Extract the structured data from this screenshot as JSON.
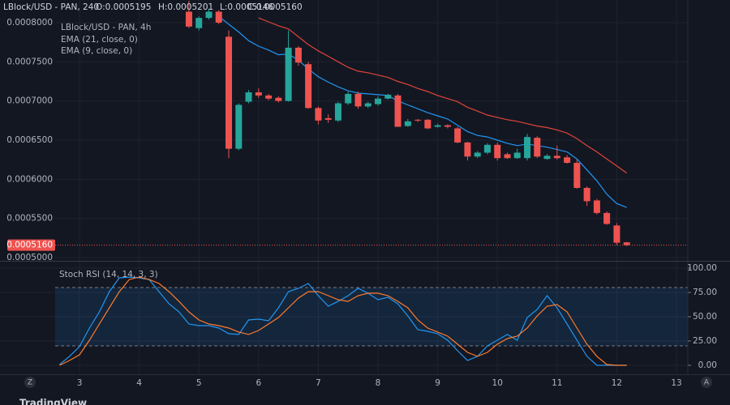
{
  "ui": {
    "symbol": "LBlock/USD - PAN, 240",
    "ohlc": [
      "O:0.0005195",
      "H:0.0005201",
      "L:0.0005146",
      "C:0.0005160"
    ],
    "left_button": "Z",
    "right_button": "A",
    "brand": "TradingView"
  },
  "chart_data": [
    {
      "type": "candlestick",
      "title": "LBlock/USD - PAN, 4h",
      "up_color": "#26a69a",
      "down_color": "#ef5350",
      "x": [
        4.833,
        5,
        5.167,
        5.333,
        5.5,
        5.667,
        5.833,
        6,
        6.167,
        6.333,
        6.5,
        6.667,
        6.833,
        7,
        7.167,
        7.333,
        7.5,
        7.667,
        7.833,
        8,
        8.167,
        8.333,
        8.5,
        8.667,
        8.833,
        9,
        9.167,
        9.333,
        9.5,
        9.667,
        9.833,
        10,
        10.167,
        10.333,
        10.5,
        10.667,
        10.833,
        11,
        11.167,
        11.333,
        11.5,
        11.667,
        11.833,
        12,
        12.167
      ],
      "open": [
        0.000814,
        0.000793,
        0.000806,
        0.000814,
        0.000782,
        0.000639,
        0.000699,
        0.000711,
        0.000707,
        0.000704,
        0.0007,
        0.000768,
        0.000747,
        0.000691,
        0.000678,
        0.000675,
        0.000697,
        0.000709,
        0.000693,
        0.000696,
        0.000703,
        0.000707,
        0.000668,
        0.000676,
        0.000676,
        0.000667,
        0.000669,
        0.000665,
        0.000647,
        0.000629,
        0.000634,
        0.000644,
        0.000632,
        0.000627,
        0.000627,
        0.000653,
        0.000626,
        0.00063,
        0.000628,
        0.000621,
        0.000589,
        0.000573,
        0.000557,
        0.000541,
        0.0005195
      ],
      "high": [
        0.000828,
        0.000808,
        0.000818,
        0.000816,
        0.00079,
        0.000697,
        0.000714,
        0.000716,
        0.000709,
        0.000706,
        0.00079,
        0.00077,
        0.00075,
        0.000693,
        0.000683,
        0.000699,
        0.000712,
        0.000712,
        0.000699,
        0.000706,
        0.000709,
        0.000709,
        0.000677,
        0.000677,
        0.000677,
        0.000671,
        0.00067,
        0.000667,
        0.000648,
        0.000636,
        0.000646,
        0.000647,
        0.000634,
        0.000639,
        0.000658,
        0.000655,
        0.000632,
        0.000643,
        0.000631,
        0.000625,
        0.000591,
        0.000575,
        0.000559,
        0.000544,
        0.0005201
      ],
      "low": [
        0.000793,
        0.00079,
        0.000804,
        0.000798,
        0.000627,
        0.000637,
        0.000697,
        0.000704,
        0.000701,
        0.000698,
        0.000699,
        0.000745,
        0.00069,
        0.00067,
        0.000672,
        0.000673,
        0.000695,
        0.00069,
        0.000691,
        0.000694,
        0.000702,
        0.000667,
        0.000667,
        0.000673,
        0.000664,
        0.000666,
        0.000665,
        0.000646,
        0.000624,
        0.000627,
        0.000632,
        0.000624,
        0.000626,
        0.000626,
        0.000624,
        0.000627,
        0.000625,
        0.000625,
        0.00062,
        0.000588,
        0.000566,
        0.000555,
        0.000542,
        0.000516,
        0.0005146
      ],
      "close": [
        0.000795,
        0.000806,
        0.000814,
        0.0008,
        0.000639,
        0.000695,
        0.000711,
        0.000707,
        0.000703,
        0.0007,
        0.000768,
        0.000749,
        0.000691,
        0.000675,
        0.000676,
        0.000697,
        0.000709,
        0.000693,
        0.000697,
        0.000703,
        0.000708,
        0.000667,
        0.000674,
        0.000675,
        0.000665,
        0.000669,
        0.000667,
        0.000647,
        0.000629,
        0.000634,
        0.000644,
        0.000627,
        0.000627,
        0.000634,
        0.000654,
        0.000629,
        0.00063,
        0.000627,
        0.000621,
        0.000589,
        0.000572,
        0.000557,
        0.000543,
        0.000519,
        0.000516
      ],
      "series": [
        {
          "name": "EMA (21, close, 0)",
          "color": "#e0443a",
          "values": [
            null,
            null,
            null,
            null,
            null,
            null,
            null,
            0.000806,
            0.000801,
            0.000796,
            0.000792,
            0.000782,
            0.000772,
            0.000764,
            0.000757,
            0.00075,
            0.000743,
            0.000738,
            0.000736,
            0.000733,
            0.00073,
            0.000725,
            0.000721,
            0.000716,
            0.000712,
            0.000707,
            0.000703,
            0.000699,
            0.000692,
            0.000687,
            0.000682,
            0.000679,
            0.000676,
            0.000674,
            0.000671,
            0.000668,
            0.000666,
            0.000663,
            0.000659,
            0.000652,
            0.000643,
            0.000635,
            0.000626,
            0.000617,
            0.000608
          ]
        },
        {
          "name": "EMA (9, close, 0)",
          "color": "#2196f3",
          "values": [
            null,
            null,
            null,
            0.000808,
            0.000798,
            0.000788,
            0.000777,
            0.00077,
            0.000765,
            0.000759,
            0.00076,
            0.000752,
            0.000741,
            0.000731,
            0.000724,
            0.000718,
            0.000713,
            0.00071,
            0.000709,
            0.000708,
            0.000707,
            0.0007,
            0.000695,
            0.00069,
            0.000685,
            0.000681,
            0.000677,
            0.000669,
            0.000661,
            0.000656,
            0.000654,
            0.00065,
            0.000646,
            0.000643,
            0.000645,
            0.000643,
            0.000641,
            0.000638,
            0.000635,
            0.000626,
            0.000612,
            0.000598,
            0.000581,
            0.000569,
            0.000564
          ]
        }
      ],
      "last_price": {
        "value": 0.000516,
        "label": "0.0005160"
      },
      "xlim": [
        1.668,
        13.19
      ],
      "ylim": [
        0.0004959,
        0.0008289
      ],
      "yticks": [
        {
          "value": 0.0005,
          "label": "0.0005000"
        },
        {
          "value": 0.00055,
          "label": "0.0005500"
        },
        {
          "value": 0.0006,
          "label": "0.0006000"
        },
        {
          "value": 0.00065,
          "label": "0.0006500"
        },
        {
          "value": 0.0007,
          "label": "0.0007000"
        },
        {
          "value": 0.00075,
          "label": "0.0007500"
        },
        {
          "value": 0.0008,
          "label": "0.0008000"
        }
      ],
      "grid": true
    },
    {
      "type": "line",
      "title": "Stoch RSI (14, 14, 3, 3)",
      "x": [
        2.667,
        2.833,
        3,
        3.167,
        3.333,
        3.5,
        3.667,
        3.833,
        4,
        4.167,
        4.333,
        4.5,
        4.667,
        4.833,
        5,
        5.167,
        5.333,
        5.5,
        5.667,
        5.833,
        6,
        6.167,
        6.333,
        6.5,
        6.667,
        6.833,
        7,
        7.167,
        7.333,
        7.5,
        7.667,
        7.833,
        8,
        8.167,
        8.333,
        8.5,
        8.667,
        8.833,
        9,
        9.167,
        9.333,
        9.5,
        9.667,
        9.833,
        10,
        10.167,
        10.333,
        10.5,
        10.667,
        10.833,
        11,
        11.167,
        11.333,
        11.5,
        11.667,
        11.833,
        12,
        12.167
      ],
      "series": [
        {
          "color": "#2196f3",
          "values": [
            0.8,
            9.2,
            19.2,
            38.3,
            55,
            75.8,
            90,
            90.8,
            90,
            88.3,
            75.8,
            63.3,
            55,
            42.5,
            40.8,
            40.8,
            38.3,
            32.5,
            31.7,
            46.7,
            47.5,
            45.8,
            59.2,
            75.8,
            79.2,
            84.2,
            71.7,
            60.8,
            65.8,
            71.7,
            79.2,
            74.2,
            67.5,
            70,
            63.3,
            50.8,
            36.7,
            35,
            32.5,
            25.8,
            15,
            5,
            9.2,
            20,
            25.8,
            31.7,
            25.8,
            49.2,
            57.5,
            71.7,
            59.2,
            42.5,
            25.8,
            9.2,
            0,
            0,
            0,
            0
          ]
        },
        {
          "color": "#ff7b2e",
          "values": [
            0,
            5,
            10.8,
            25.8,
            42.5,
            59.2,
            75.8,
            88.3,
            90.8,
            88.3,
            84.2,
            75.8,
            65.8,
            55,
            46.7,
            42.5,
            40.8,
            38.3,
            34.2,
            31.7,
            35.8,
            42.5,
            49.2,
            59.2,
            69.2,
            75.8,
            75.8,
            71.7,
            67.5,
            65.8,
            71.7,
            74.2,
            74.2,
            71.7,
            65.8,
            59.2,
            46.7,
            38.3,
            34.2,
            30,
            21.7,
            13.3,
            9.2,
            13.3,
            21.7,
            27.5,
            30,
            38.3,
            50.8,
            60.8,
            62.5,
            55,
            38.3,
            21.7,
            9.2,
            0.8,
            0,
            0
          ]
        }
      ],
      "band": [
        20,
        80
      ],
      "xlim": [
        1.668,
        13.19
      ],
      "ylim": [
        -9.2,
        106.7
      ],
      "xticks": [
        3,
        4,
        5,
        6,
        7,
        8,
        9,
        10,
        11,
        12,
        13
      ],
      "yticks": [
        {
          "value": 0,
          "label": "0.00"
        },
        {
          "value": 25,
          "label": "25.00"
        },
        {
          "value": 50,
          "label": "50.00"
        },
        {
          "value": 75,
          "label": "75.00"
        },
        {
          "value": 100,
          "label": "100.00"
        }
      ],
      "grid": true
    }
  ]
}
